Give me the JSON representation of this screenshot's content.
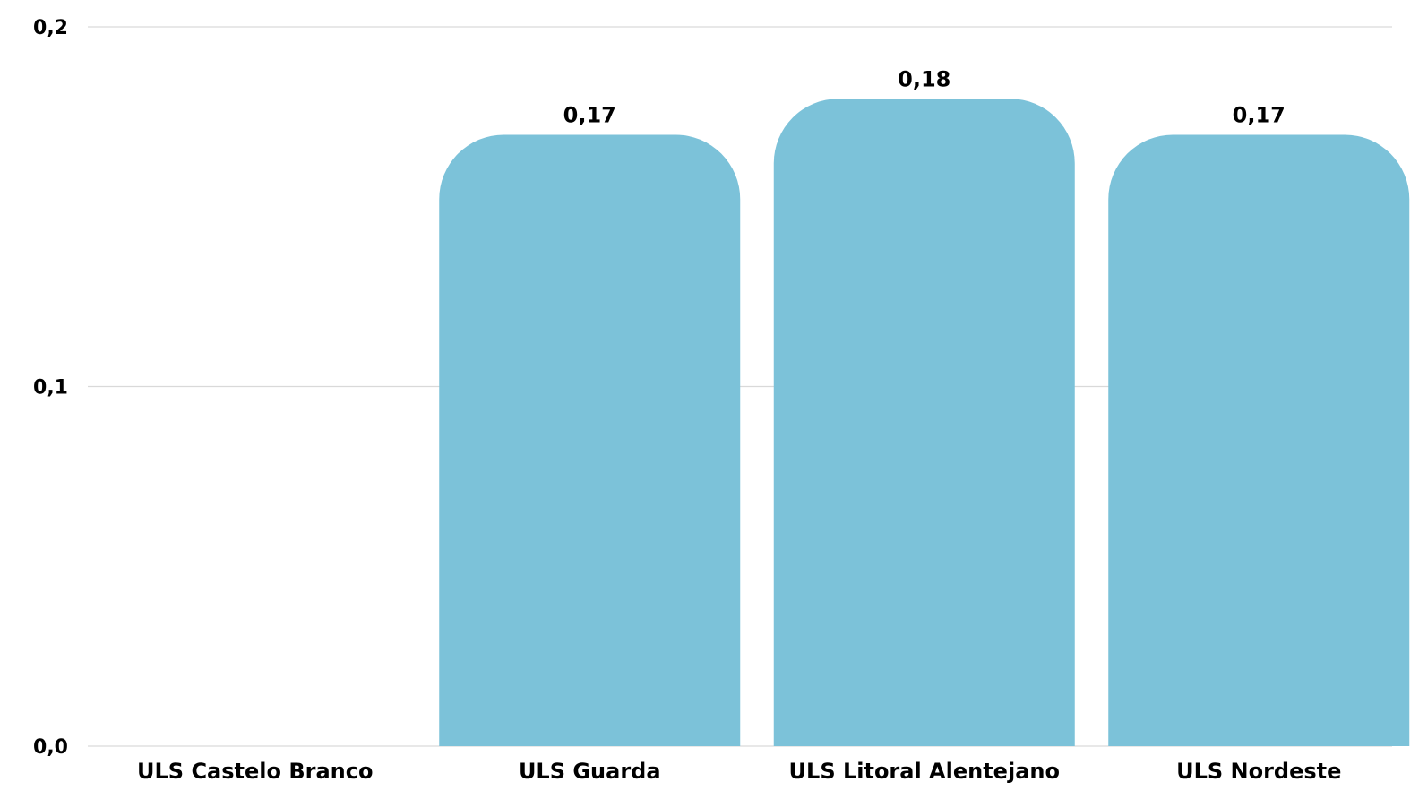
{
  "chart_data": {
    "type": "bar",
    "title": "",
    "xlabel": "",
    "ylabel": "",
    "categories": [
      "ULS Castelo Branco",
      "ULS Guarda",
      "ULS Litoral Alentejano",
      "ULS Nordeste"
    ],
    "values": [
      0,
      0.17,
      0.18,
      0.17
    ],
    "value_labels": [
      "",
      "0,17",
      "0,18",
      "0,17"
    ],
    "ylim": [
      0,
      0.2
    ],
    "yticks": [
      0,
      0.1,
      0.2
    ],
    "ytick_labels": [
      "0,0",
      "0,1",
      "0,2"
    ],
    "grid": true,
    "legend": "none",
    "bar_color": "#7cc2d9",
    "grid_color": "#d9d9d9",
    "text_color": "#000000"
  }
}
